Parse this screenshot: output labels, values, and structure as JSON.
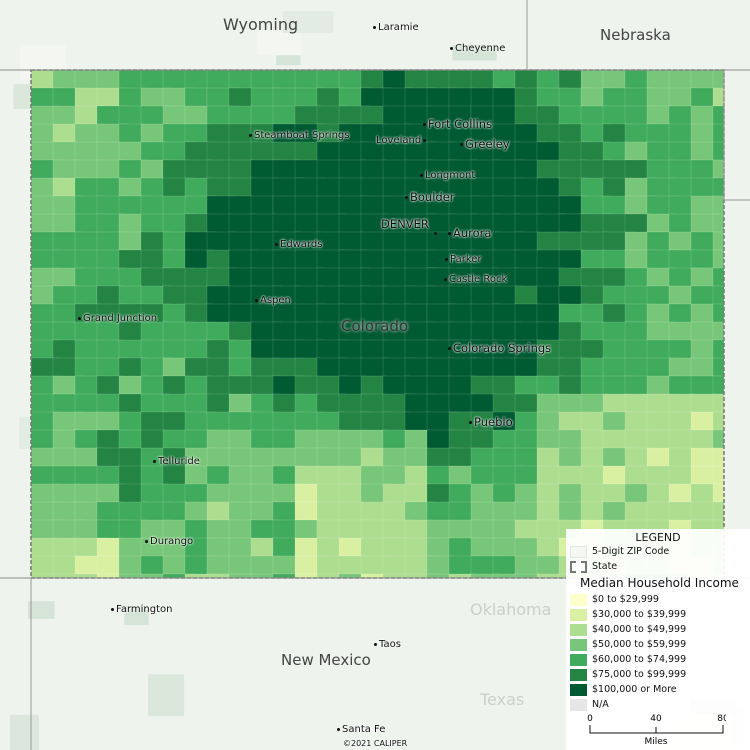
{
  "map": {
    "neighbor_states": [
      "Wyoming",
      "Nebraska",
      "New Mexico"
    ],
    "faint_labels": [
      "Oklahoma",
      "Texas"
    ],
    "focus_state": "Colorado",
    "cities": [
      "Laramie",
      "Cheyenne",
      "Fort Collins",
      "Loveland",
      "Greeley",
      "Longmont",
      "Boulder",
      "DENVER",
      "Aurora",
      "Parker",
      "Castle Rock",
      "Steamboat Springs",
      "Edwards",
      "Aspen",
      "Grand Junction",
      "Colorado Springs",
      "Pueblo",
      "Telluride",
      "Durango",
      "Farmington",
      "Taos",
      "Santa Fe"
    ],
    "copyright": "©2021 CALIPER"
  },
  "legend": {
    "title": "LEGEND",
    "layers": [
      {
        "label": "5-Digit ZIP Code",
        "icon": "zip-area-swatch"
      },
      {
        "label": "State",
        "icon": "state-border-swatch"
      }
    ],
    "theme_title": "Median Household Income",
    "classes": [
      {
        "label": "$0 to $29,999",
        "color": "#ffffcc"
      },
      {
        "label": "$30,000 to $39,999",
        "color": "#d9f0a3"
      },
      {
        "label": "$40,000 to $49,999",
        "color": "#addd8e"
      },
      {
        "label": "$50,000 to $59,999",
        "color": "#78c679"
      },
      {
        "label": "$60,000 to $74,999",
        "color": "#41ab5d"
      },
      {
        "label": "$75,000 to $99,999",
        "color": "#238443"
      },
      {
        "label": "$100,000 or More",
        "color": "#005a32"
      },
      {
        "label": "N/A",
        "color": "#e6e6e6"
      }
    ],
    "scale": {
      "ticks": [
        "0",
        "40",
        "80"
      ],
      "unit": "Miles"
    }
  }
}
